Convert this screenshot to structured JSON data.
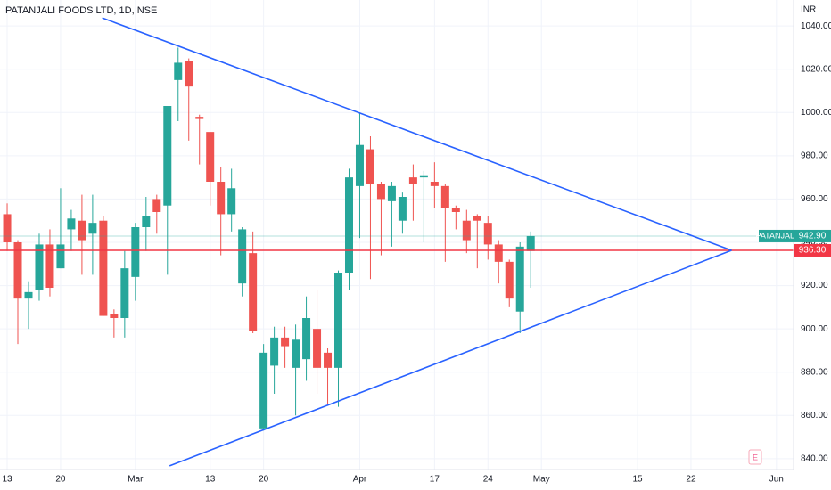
{
  "chart_data": {
    "type": "candlestick",
    "title": "PATANJALI FOODS LTD, 1D, NSE",
    "currency": "INR",
    "up_color": "#26a69a",
    "down_color": "#ef5350",
    "xlim": [
      -0.67,
      73.6
    ],
    "xticks": [
      {
        "value": 0,
        "label": "13"
      },
      {
        "value": 5,
        "label": "20"
      },
      {
        "value": 12,
        "label": "Mar"
      },
      {
        "value": 19,
        "label": "13"
      },
      {
        "value": 24,
        "label": "20"
      },
      {
        "value": 33,
        "label": "Apr"
      },
      {
        "value": 40,
        "label": "17"
      },
      {
        "value": 45,
        "label": "24"
      },
      {
        "value": 50,
        "label": "May"
      },
      {
        "value": 59,
        "label": "15"
      },
      {
        "value": 64,
        "label": "22"
      },
      {
        "value": 72,
        "label": "Jun"
      }
    ],
    "ylim": [
      835,
      1052
    ],
    "yticks": [
      {
        "value": 840,
        "label": "840.00"
      },
      {
        "value": 860,
        "label": "860.00"
      },
      {
        "value": 880,
        "label": "880.00"
      },
      {
        "value": 900,
        "label": "900.00"
      },
      {
        "value": 920,
        "label": "920.00"
      },
      {
        "value": 940,
        "label": "940.00"
      },
      {
        "value": 960,
        "label": "960.00"
      },
      {
        "value": 980,
        "label": "980.00"
      },
      {
        "value": 1000,
        "label": "1000.00"
      },
      {
        "value": 1020,
        "label": "1020.00"
      },
      {
        "value": 1040,
        "label": "1040.00"
      }
    ],
    "grid": true,
    "open": [
      953,
      940,
      914,
      918,
      939,
      928,
      946,
      950,
      944,
      950,
      907,
      905,
      924,
      947,
      960,
      957,
      1015,
      1024,
      998,
      991,
      968,
      953,
      921,
      935,
      854,
      883,
      896,
      882,
      886,
      900,
      889,
      882,
      926,
      966,
      983,
      967,
      959,
      950,
      970,
      970,
      968,
      966,
      956,
      950,
      952,
      949,
      939,
      931,
      908,
      936
    ],
    "high": [
      958,
      941,
      922,
      944,
      946,
      965,
      955,
      962,
      962,
      952,
      909,
      936,
      949,
      961,
      962,
      1003,
      1030,
      1025,
      999,
      991,
      975,
      974,
      947,
      945,
      893,
      901,
      901,
      902,
      915,
      918,
      891,
      927,
      974,
      1000,
      989,
      968,
      968,
      963,
      976,
      973,
      977,
      967,
      957,
      955,
      953,
      952,
      941,
      932,
      940,
      945
    ],
    "low": [
      936,
      893,
      900,
      913,
      915,
      928,
      936,
      925,
      925,
      906,
      896,
      896,
      913,
      936,
      944,
      925,
      996,
      987,
      976,
      957,
      934,
      945,
      915,
      898,
      853,
      870,
      882,
      860,
      876,
      870,
      865,
      864,
      918,
      942,
      923,
      934,
      938,
      944,
      950,
      940,
      956,
      931,
      946,
      935,
      928,
      932,
      921,
      910,
      898,
      919
    ],
    "close": [
      940,
      914,
      917,
      939,
      919,
      939,
      951,
      941,
      949,
      906,
      905,
      928,
      947,
      952,
      954,
      1003,
      1023,
      1012,
      997,
      968,
      953,
      965,
      946,
      899,
      889,
      896,
      892,
      895,
      905,
      882,
      882,
      926,
      970,
      985,
      967,
      960,
      966,
      961,
      967,
      971,
      966,
      956,
      954,
      941,
      950,
      939,
      931,
      914,
      938,
      942.9
    ],
    "trendlines": [
      {
        "color": "#2962ff",
        "x": [
          8.9,
          67.8
        ],
        "y": [
          1043.7,
          936.3
        ]
      },
      {
        "color": "#2962ff",
        "x": [
          15.2,
          67.8
        ],
        "y": [
          836.7,
          936.3
        ]
      }
    ],
    "last_price": {
      "name": "PATANJALI",
      "value": 942.9,
      "label": "942.90",
      "color": "#26a69a"
    },
    "price_line": {
      "value": 936.3,
      "label": "936.30",
      "color": "#f23645"
    },
    "badge": "E"
  }
}
